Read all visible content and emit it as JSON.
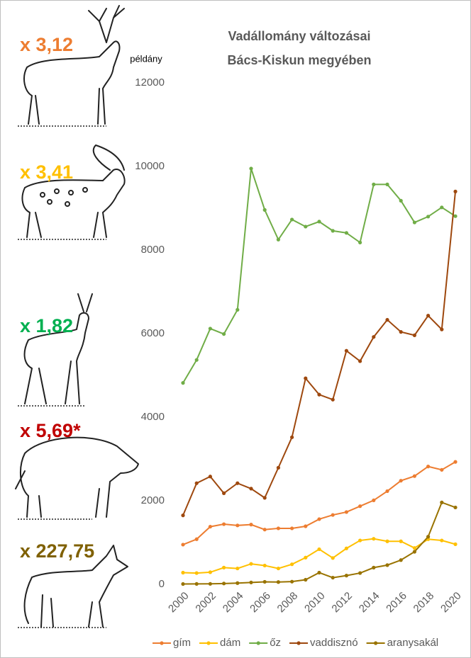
{
  "chart_data": {
    "type": "line",
    "title": "Vadállomány változásai",
    "subtitle": "Bács-Kiskun megyében",
    "y_label": "példány",
    "x": [
      2000,
      2001,
      2002,
      2003,
      2004,
      2005,
      2006,
      2007,
      2008,
      2009,
      2010,
      2011,
      2012,
      2013,
      2014,
      2015,
      2016,
      2017,
      2018,
      2019,
      2020
    ],
    "xlim": [
      2000,
      2020
    ],
    "xticks": [
      2000,
      2002,
      2004,
      2006,
      2008,
      2010,
      2012,
      2014,
      2016,
      2018,
      2020
    ],
    "ylim": [
      0,
      12000
    ],
    "yticks": [
      0,
      2000,
      4000,
      6000,
      8000,
      10000,
      12000
    ],
    "grid": false,
    "series": [
      {
        "name": "gím",
        "color": "#ed7d31",
        "values": [
          950,
          1080,
          1380,
          1440,
          1410,
          1430,
          1310,
          1340,
          1340,
          1390,
          1560,
          1660,
          1730,
          1870,
          2010,
          2230,
          2480,
          2590,
          2820,
          2740,
          2930
        ]
      },
      {
        "name": "dám",
        "color": "#ffc000",
        "values": [
          280,
          270,
          290,
          400,
          380,
          490,
          450,
          380,
          480,
          640,
          840,
          630,
          860,
          1050,
          1090,
          1030,
          1030,
          870,
          1080,
          1050,
          960
        ]
      },
      {
        "name": "őz",
        "color": "#70ad47",
        "values": [
          4820,
          5370,
          6120,
          5990,
          6570,
          9950,
          8960,
          8250,
          8730,
          8560,
          8680,
          8460,
          8410,
          8180,
          9570,
          9570,
          9180,
          8660,
          8800,
          9020,
          8810
        ]
      },
      {
        "name": "vaddisznó",
        "color": "#9e480e",
        "values": [
          1650,
          2420,
          2580,
          2180,
          2420,
          2290,
          2070,
          2790,
          3520,
          4930,
          4540,
          4420,
          5590,
          5340,
          5920,
          6330,
          6040,
          5960,
          6430,
          6100,
          9400
        ]
      },
      {
        "name": "aranysakál",
        "color": "#997300",
        "values": [
          8,
          10,
          12,
          20,
          30,
          45,
          60,
          55,
          65,
          110,
          280,
          160,
          210,
          270,
          400,
          460,
          580,
          780,
          1140,
          1960,
          1840
        ]
      }
    ],
    "annotations": [
      {
        "text": "x 3,12",
        "color": "#ed7d31"
      },
      {
        "text": "x 3,41",
        "color": "#ffc000"
      },
      {
        "text": "x 1,82",
        "color": "#00b050"
      },
      {
        "text": "x 5,69*",
        "color": "#c00000"
      },
      {
        "text": "x 227,75",
        "color": "#7f6000"
      }
    ]
  }
}
